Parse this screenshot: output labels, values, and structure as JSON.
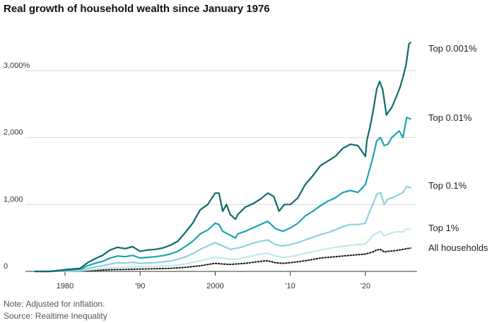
{
  "title": "Real growth of household wealth since January 1976",
  "footer": {
    "note": "Note: Adjusted for inflation.",
    "source": "Source: Realtime Inequality"
  },
  "chart_data": {
    "type": "line",
    "title": "Real growth of household wealth since January 1976",
    "xlabel": "",
    "ylabel": "",
    "xlim": [
      1976,
      2026
    ],
    "ylim": [
      0,
      3500
    ],
    "grid": true,
    "y_ticks": [
      {
        "value": 0,
        "label": "0"
      },
      {
        "value": 1000,
        "label": "1,000"
      },
      {
        "value": 2000,
        "label": "2,000"
      },
      {
        "value": 3000,
        "label": "3,000%"
      }
    ],
    "x_ticks": [
      {
        "value": 1980,
        "label": "1980"
      },
      {
        "value": 1990,
        "label": "'90"
      },
      {
        "value": 2000,
        "label": "2000"
      },
      {
        "value": 2010,
        "label": "'10"
      },
      {
        "value": 2020,
        "label": "'20"
      }
    ],
    "series": [
      {
        "name": "Top 0.001%",
        "color": "#0e6a6c",
        "style": "solid",
        "x": [
          1976,
          1978,
          1980,
          1982,
          1983,
          1984,
          1985,
          1986,
          1987,
          1988,
          1989,
          1990,
          1991,
          1992,
          1993,
          1994,
          1995,
          1996,
          1997,
          1998,
          1999,
          2000,
          2000.5,
          2001,
          2001.5,
          2002,
          2002.7,
          2003,
          2004,
          2005,
          2006,
          2007,
          2007.8,
          2008.5,
          2009.2,
          2010,
          2011,
          2012,
          2013,
          2014,
          2015,
          2016,
          2017,
          2018,
          2019,
          2020,
          2020.2,
          2020.6,
          2021,
          2021.5,
          2021.9,
          2022.3,
          2022.8,
          2023.5,
          2024,
          2024.6,
          2025,
          2025.4,
          2025.8,
          2026
        ],
        "values": [
          0,
          0,
          25,
          45,
          130,
          190,
          240,
          320,
          360,
          340,
          370,
          300,
          320,
          330,
          350,
          390,
          450,
          580,
          720,
          920,
          1000,
          1170,
          1170,
          900,
          1000,
          850,
          780,
          850,
          960,
          1010,
          1080,
          1170,
          1120,
          900,
          1000,
          1000,
          1100,
          1300,
          1430,
          1580,
          1650,
          1720,
          1840,
          1900,
          1880,
          1720,
          1960,
          2150,
          2380,
          2720,
          2840,
          2720,
          2340,
          2450,
          2580,
          2750,
          2900,
          3080,
          3400,
          3420
        ]
      },
      {
        "name": "Top 0.01%",
        "color": "#1ba4b2",
        "style": "solid",
        "x": [
          1976,
          1978,
          1980,
          1982,
          1983,
          1984,
          1985,
          1986,
          1987,
          1988,
          1989,
          1990,
          1991,
          1992,
          1993,
          1994,
          1995,
          1996,
          1997,
          1998,
          1999,
          2000,
          2000.5,
          2001,
          2002,
          2002.7,
          2003,
          2004,
          2005,
          2006,
          2007,
          2008,
          2009,
          2010,
          2011,
          2012,
          2013,
          2014,
          2015,
          2016,
          2017,
          2018,
          2019,
          2020,
          2020.5,
          2021,
          2021.5,
          2022,
          2022.5,
          2023,
          2023.5,
          2024,
          2024.5,
          2025,
          2025.5,
          2026
        ],
        "values": [
          0,
          0,
          18,
          35,
          85,
          120,
          150,
          200,
          230,
          220,
          240,
          200,
          210,
          220,
          235,
          260,
          300,
          370,
          450,
          560,
          620,
          720,
          700,
          600,
          540,
          500,
          560,
          600,
          650,
          700,
          750,
          640,
          600,
          650,
          720,
          830,
          900,
          980,
          1050,
          1100,
          1180,
          1210,
          1180,
          1300,
          1500,
          1700,
          1950,
          2000,
          1880,
          1900,
          2000,
          2050,
          2100,
          2000,
          2300,
          2280
        ]
      },
      {
        "name": "Top 0.1%",
        "color": "#8fd0de",
        "style": "solid",
        "x": [
          1976,
          1978,
          1980,
          1982,
          1983,
          1984,
          1985,
          1986,
          1987,
          1988,
          1989,
          1990,
          1991,
          1992,
          1993,
          1994,
          1995,
          1996,
          1997,
          1998,
          1999,
          2000,
          2001,
          2002,
          2003,
          2004,
          2005,
          2006,
          2007,
          2008,
          2009,
          2010,
          2011,
          2012,
          2013,
          2014,
          2015,
          2016,
          2017,
          2018,
          2019,
          2020,
          2020.5,
          2021,
          2021.5,
          2022,
          2022.5,
          2023,
          2024,
          2025,
          2025.5,
          2026
        ],
        "values": [
          0,
          0,
          10,
          20,
          45,
          65,
          85,
          110,
          130,
          125,
          135,
          120,
          125,
          130,
          140,
          155,
          180,
          215,
          265,
          330,
          380,
          430,
          380,
          330,
          350,
          380,
          420,
          450,
          470,
          400,
          380,
          400,
          430,
          470,
          510,
          550,
          580,
          620,
          670,
          700,
          700,
          720,
          880,
          1000,
          1150,
          1180,
          1000,
          1080,
          1120,
          1180,
          1270,
          1250
        ]
      },
      {
        "name": "Top 1%",
        "color": "#c3e7ed",
        "style": "solid",
        "x": [
          1976,
          1978,
          1980,
          1982,
          1984,
          1986,
          1988,
          1990,
          1992,
          1994,
          1996,
          1998,
          2000,
          2001,
          2002,
          2003,
          2004,
          2005,
          2006,
          2007,
          2008,
          2009,
          2010,
          2012,
          2014,
          2016,
          2018,
          2019,
          2020,
          2020.5,
          2021,
          2021.5,
          2022,
          2022.5,
          2023,
          2024,
          2025,
          2025.5,
          2026
        ],
        "values": [
          0,
          0,
          6,
          12,
          30,
          55,
          65,
          70,
          75,
          85,
          110,
          160,
          210,
          200,
          180,
          185,
          210,
          235,
          260,
          275,
          230,
          210,
          220,
          270,
          320,
          360,
          390,
          400,
          410,
          470,
          540,
          570,
          600,
          530,
          560,
          590,
          590,
          640,
          630
        ]
      },
      {
        "name": "All households",
        "color": "#111111",
        "style": "dotted",
        "x": [
          1976,
          1978,
          1980,
          1982,
          1984,
          1986,
          1988,
          1990,
          1992,
          1994,
          1996,
          1998,
          2000,
          2001,
          2002,
          2004,
          2006,
          2007,
          2008,
          2009,
          2010,
          2012,
          2014,
          2016,
          2018,
          2019,
          2020,
          2021,
          2021.5,
          2022,
          2022.5,
          2023,
          2024,
          2025,
          2026
        ],
        "values": [
          0,
          0,
          3,
          5,
          15,
          25,
          30,
          35,
          40,
          45,
          60,
          85,
          120,
          110,
          105,
          120,
          150,
          160,
          130,
          120,
          130,
          160,
          200,
          220,
          240,
          250,
          260,
          290,
          320,
          330,
          290,
          300,
          310,
          330,
          350
        ]
      }
    ]
  }
}
